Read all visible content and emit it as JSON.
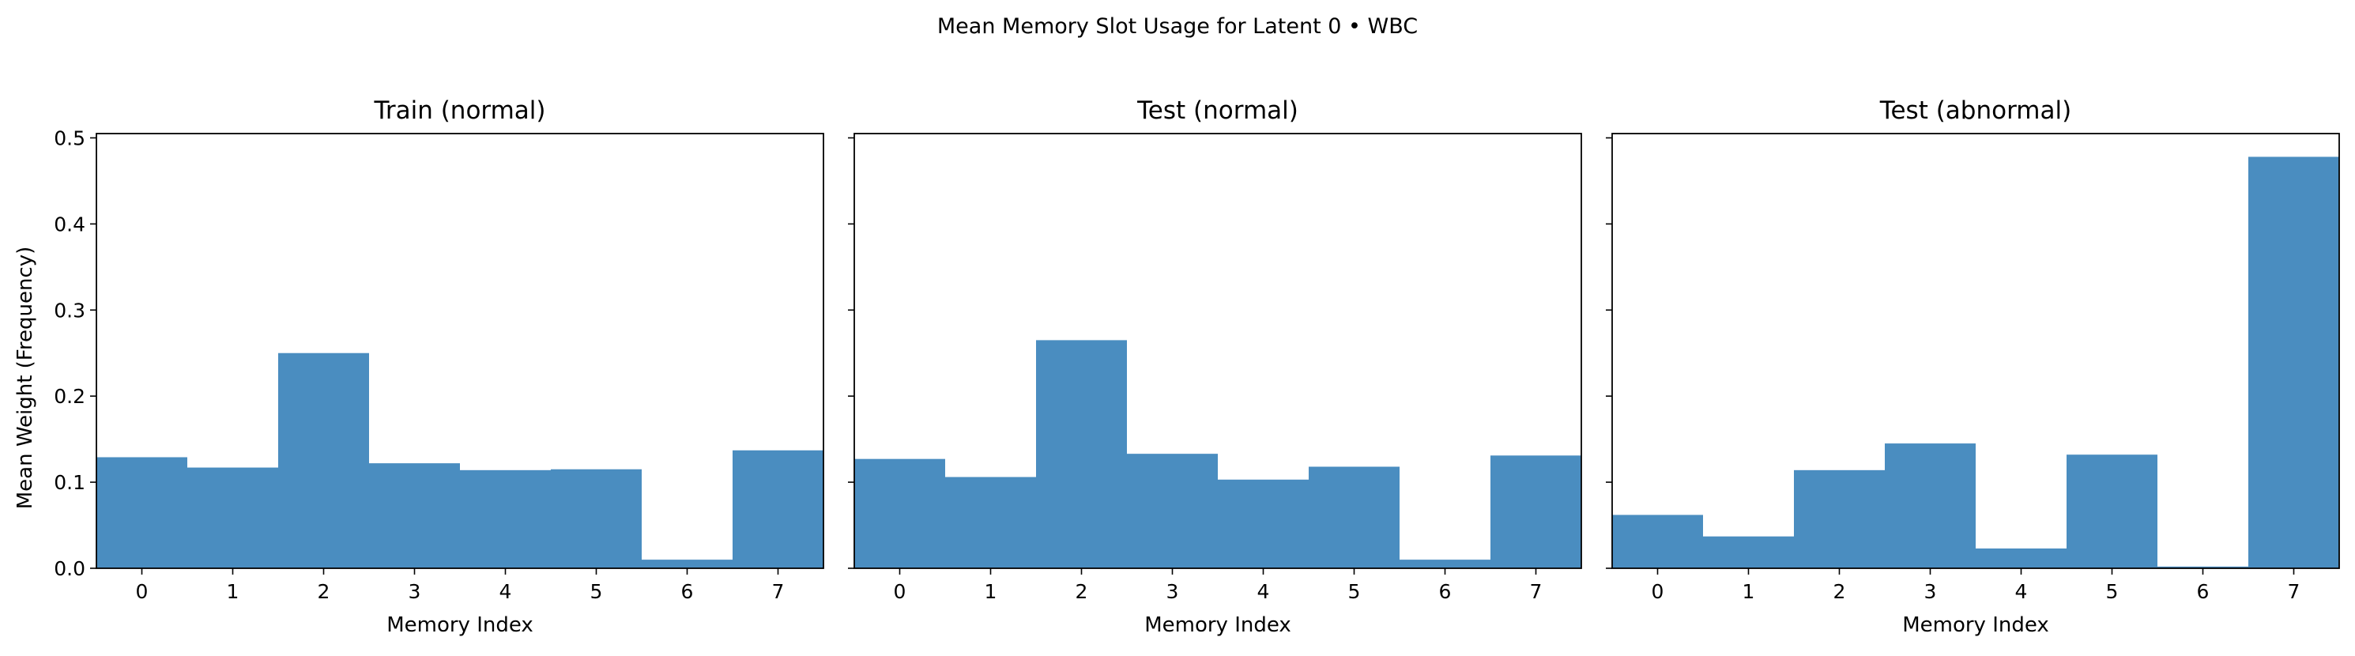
{
  "figure": {
    "suptitle": "Mean Memory Slot Usage for Latent 0 • WBC",
    "ylabel": "Mean Weight (Frequency)",
    "bar_color": "#4a8dc0"
  },
  "chart_data": [
    {
      "type": "bar",
      "title": "Train (normal)",
      "xlabel": "Memory Index",
      "ylabel": "Mean Weight (Frequency)",
      "categories": [
        "0",
        "1",
        "2",
        "3",
        "4",
        "5",
        "6",
        "7"
      ],
      "values": [
        0.129,
        0.117,
        0.25,
        0.122,
        0.114,
        0.115,
        0.01,
        0.137
      ],
      "ylim": [
        0,
        0.505
      ],
      "yticks": [
        "0.0",
        "0.1",
        "0.2",
        "0.3",
        "0.4",
        "0.5"
      ],
      "grid": false
    },
    {
      "type": "bar",
      "title": "Test (normal)",
      "xlabel": "Memory Index",
      "categories": [
        "0",
        "1",
        "2",
        "3",
        "4",
        "5",
        "6",
        "7"
      ],
      "values": [
        0.127,
        0.106,
        0.265,
        0.133,
        0.103,
        0.118,
        0.01,
        0.131
      ],
      "ylim": [
        0,
        0.505
      ],
      "grid": false
    },
    {
      "type": "bar",
      "title": "Test (abnormal)",
      "xlabel": "Memory Index",
      "categories": [
        "0",
        "1",
        "2",
        "3",
        "4",
        "5",
        "6",
        "7"
      ],
      "values": [
        0.062,
        0.037,
        0.114,
        0.145,
        0.023,
        0.132,
        0.002,
        0.478
      ],
      "ylim": [
        0,
        0.505
      ],
      "grid": false
    }
  ]
}
